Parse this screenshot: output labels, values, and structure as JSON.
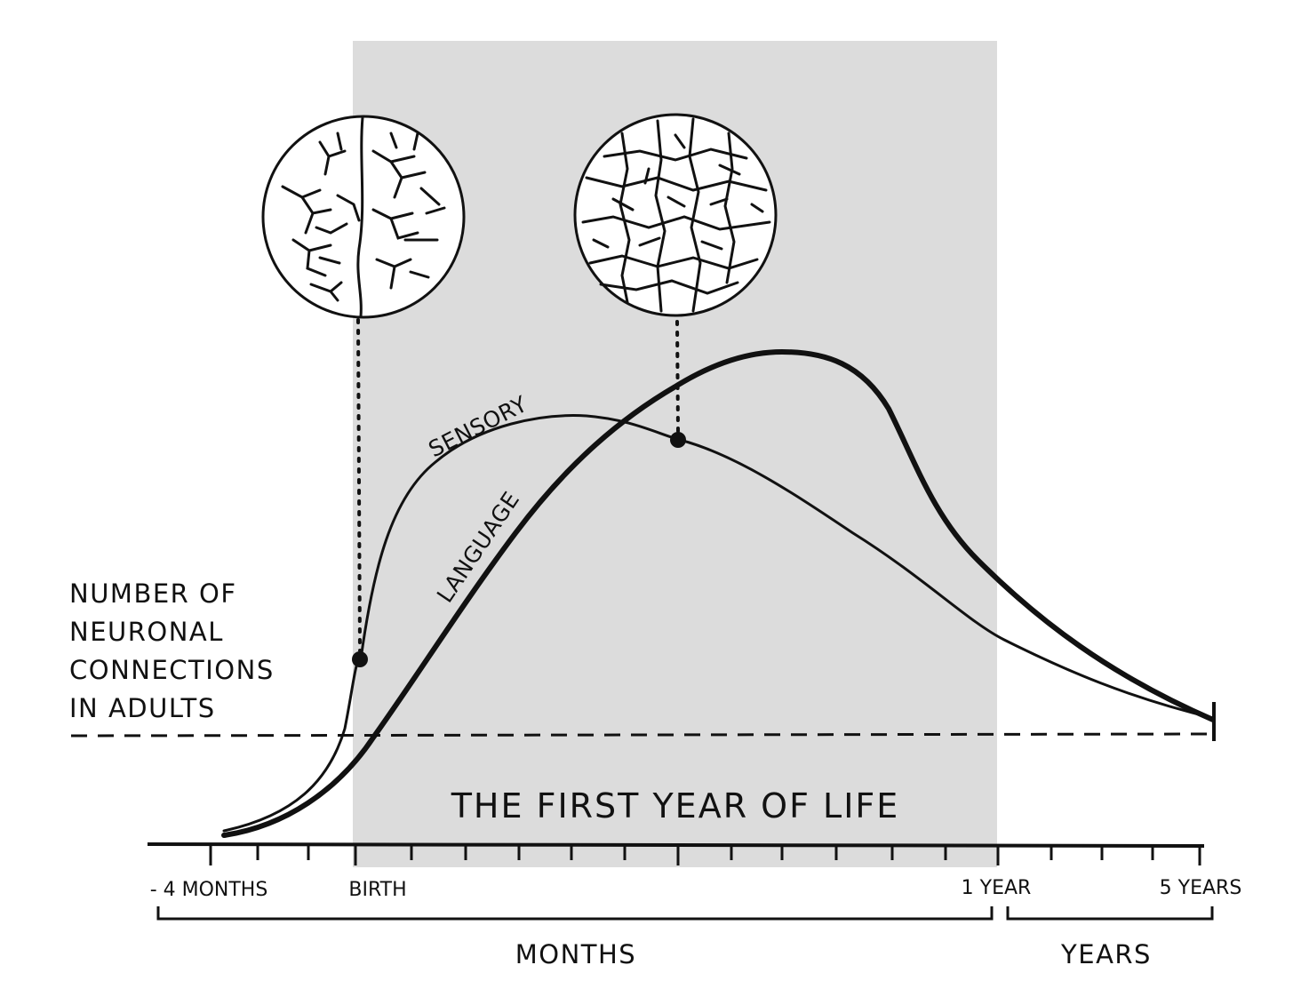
{
  "colors": {
    "ink": "#111111",
    "highlight_band": "#dcdcdc",
    "background": "#ffffff"
  },
  "highlight_label": "THE FIRST YEAR OF LIFE",
  "reference_line_label": [
    "NUMBER OF",
    "NEURONAL",
    "CONNECTIONS",
    "IN ADULTS"
  ],
  "curves": {
    "sensory": {
      "label": "SENSORY"
    },
    "language": {
      "label": "LANGUAGE"
    }
  },
  "axis": {
    "tick_labels": {
      "minus_4_months": "- 4 MONTHS",
      "birth": "BIRTH",
      "one_year": "1 YEAR",
      "five_years": "5 YEARS"
    },
    "brackets": {
      "months": "MONTHS",
      "years": "YEARS"
    }
  },
  "insets": {
    "birth": {
      "description_icon": "sparse-neurons-icon"
    },
    "peak": {
      "description_icon": "dense-neurons-icon"
    }
  }
}
